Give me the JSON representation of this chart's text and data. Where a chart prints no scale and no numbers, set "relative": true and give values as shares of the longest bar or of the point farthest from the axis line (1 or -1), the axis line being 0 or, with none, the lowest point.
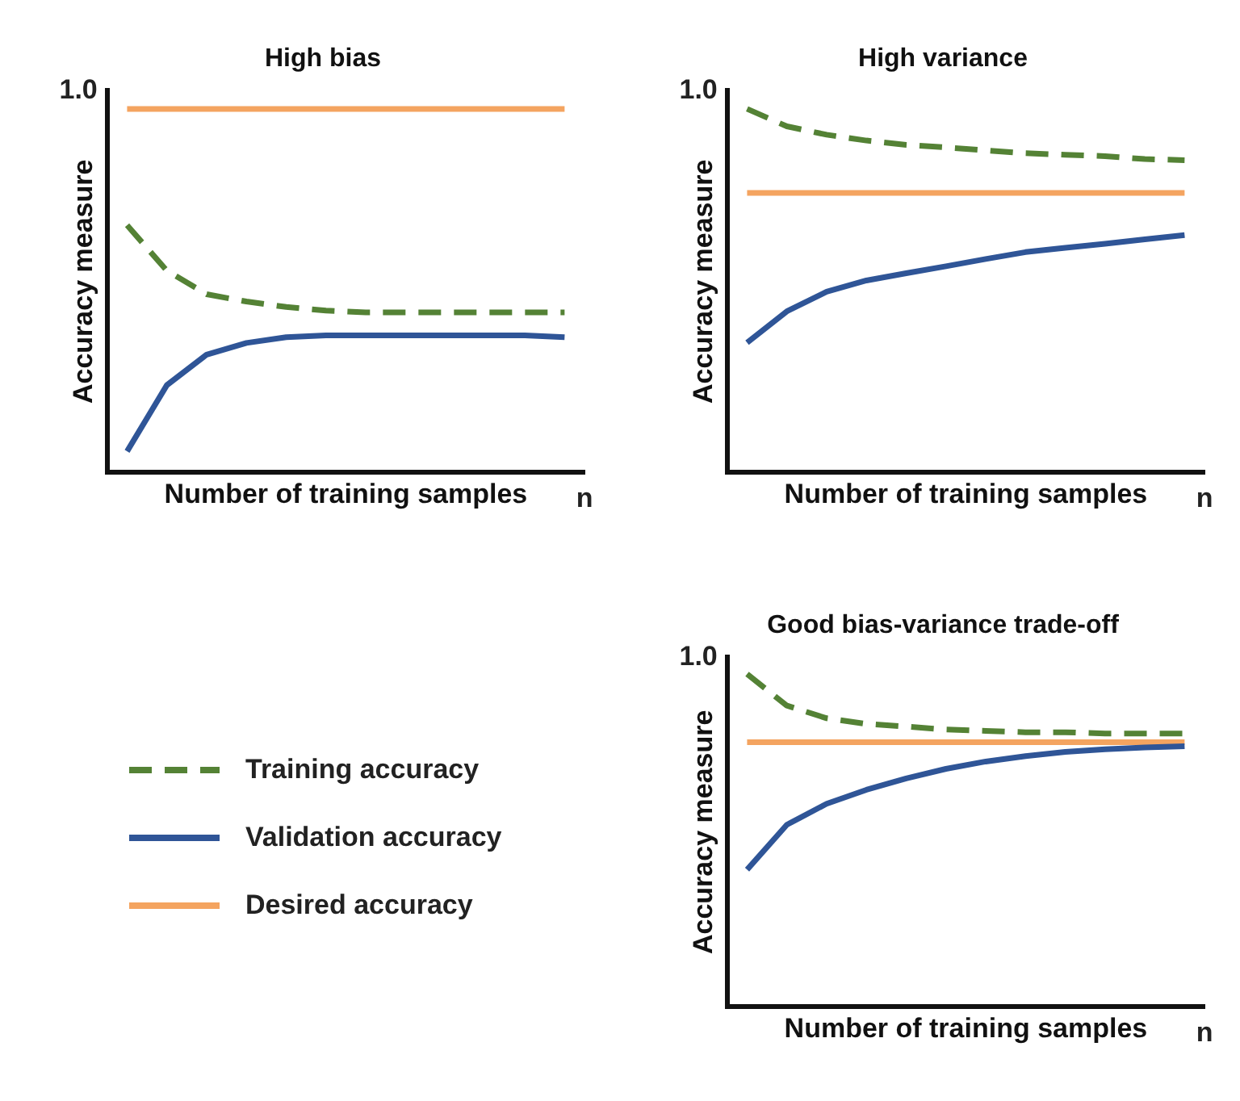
{
  "chart_data": [
    {
      "type": "line",
      "relative": true,
      "title": "High bias",
      "xlabel": "Number of training samples",
      "ylabel": "Accuracy measure",
      "annotations": [
        "1.0",
        "n"
      ],
      "grid": false,
      "legend": false,
      "marker": "none",
      "categories": [
        null,
        null,
        null,
        null,
        null,
        null,
        null,
        null,
        null,
        null,
        null,
        null
      ],
      "series": [
        {
          "color": "#f4a460",
          "values": [
            1,
            1,
            1,
            1,
            1,
            1,
            1,
            1,
            1,
            1,
            1,
            1
          ]
        },
        {
          "color": "#548235",
          "line_style": "dashed",
          "values": [
            0.68,
            0.555,
            0.49,
            0.47,
            0.455,
            0.445,
            0.44,
            0.44,
            0.44,
            0.44,
            0.44,
            0.44
          ]
        },
        {
          "color": "#2f5597",
          "values": [
            0.058,
            0.24,
            0.324,
            0.356,
            0.372,
            0.377,
            0.377,
            0.377,
            0.377,
            0.377,
            0.377,
            0.372
          ]
        }
      ]
    },
    {
      "type": "line",
      "relative": true,
      "title": "High variance",
      "xlabel": "Number of training samples",
      "ylabel": "Accuracy measure",
      "annotations": [
        "1.0",
        "n"
      ],
      "grid": false,
      "legend": false,
      "marker": "none",
      "categories": [
        null,
        null,
        null,
        null,
        null,
        null,
        null,
        null,
        null,
        null,
        null,
        null
      ],
      "series": [
        {
          "color": "#f4a460",
          "values": [
            0.769,
            0.769,
            0.769,
            0.769,
            0.769,
            0.769,
            0.769,
            0.769,
            0.769,
            0.769,
            0.769,
            0.769
          ]
        },
        {
          "color": "#548235",
          "line_style": "dashed",
          "values": [
            1,
            0.952,
            0.929,
            0.913,
            0.901,
            0.894,
            0.886,
            0.878,
            0.874,
            0.87,
            0.862,
            0.859
          ]
        },
        {
          "color": "#2f5597",
          "values": [
            0.357,
            0.443,
            0.497,
            0.528,
            0.548,
            0.567,
            0.587,
            0.606,
            0.618,
            0.629,
            0.641,
            0.653
          ]
        }
      ]
    },
    {
      "type": "line",
      "relative": true,
      "title": "Good bias-variance trade-off",
      "xlabel": "Number of training samples",
      "ylabel": "Accuracy measure",
      "annotations": [
        "1.0",
        "n"
      ],
      "grid": false,
      "legend": "left",
      "marker": "none",
      "categories": [
        null,
        null,
        null,
        null,
        null,
        null,
        null,
        null,
        null,
        null,
        null,
        null
      ],
      "series": [
        {
          "name": "Training accuracy",
          "color": "#548235",
          "line_style": "dashed",
          "values": [
            1,
            0.905,
            0.867,
            0.85,
            0.842,
            0.833,
            0.829,
            0.825,
            0.825,
            0.821,
            0.821,
            0.821
          ]
        },
        {
          "name": "Validation accuracy",
          "color": "#2f5597",
          "values": [
            0.412,
            0.547,
            0.61,
            0.652,
            0.686,
            0.715,
            0.737,
            0.753,
            0.766,
            0.774,
            0.779,
            0.783
          ]
        },
        {
          "name": "Desired accuracy",
          "color": "#f4a460",
          "values": [
            0.795,
            0.795,
            0.795,
            0.795,
            0.795,
            0.795,
            0.795,
            0.795,
            0.795,
            0.795,
            0.795,
            0.795
          ]
        }
      ]
    }
  ]
}
